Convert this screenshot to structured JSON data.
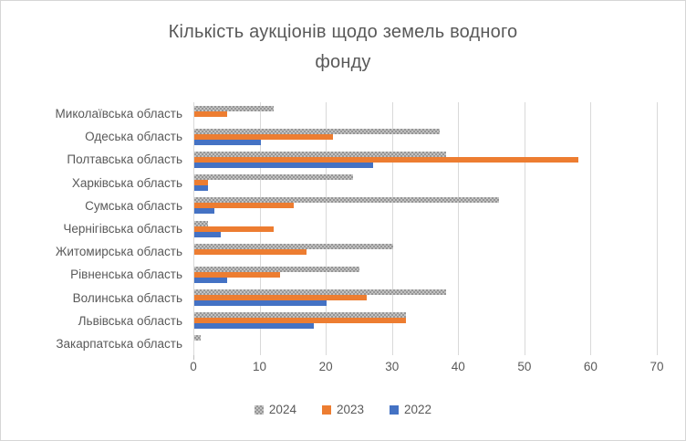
{
  "title": {
    "line1": "Кількість аукціонів щодо земель водного",
    "line2": "фонду"
  },
  "colors": {
    "series_2024": "#ABABAB",
    "series_2023": "#ED7D31",
    "series_2022": "#4472C4",
    "text": "#595959",
    "gridline": "#D9D9D9",
    "border": "#D6D6D6",
    "background": "#FFFFFF"
  },
  "chart_data": {
    "type": "bar",
    "orientation": "horizontal",
    "title": "Кількість аукціонів щодо земель водного фонду",
    "xlabel": "",
    "ylabel": "",
    "categories": [
      "Миколаївська область",
      "Одеська область",
      "Полтавська область",
      "Харківська область",
      "Сумська область",
      "Чернігівська область",
      "Житомирська область",
      "Рівненська область",
      "Волинська область",
      "Львівська область",
      "Закарпатська область"
    ],
    "series": [
      {
        "name": "2024",
        "color": "#ABABAB",
        "pattern": "dotted-gray",
        "values": [
          12,
          37,
          38,
          24,
          46,
          2,
          30,
          25,
          38,
          32,
          1
        ]
      },
      {
        "name": "2023",
        "color": "#ED7D31",
        "pattern": "solid",
        "values": [
          5,
          21,
          58,
          2,
          15,
          12,
          17,
          13,
          26,
          32,
          0
        ]
      },
      {
        "name": "2022",
        "color": "#4472C4",
        "pattern": "solid",
        "values": [
          0,
          10,
          27,
          2,
          3,
          4,
          0,
          5,
          20,
          18,
          0
        ]
      }
    ],
    "xlim": [
      0,
      70
    ],
    "xticks": [
      0,
      10,
      20,
      30,
      40,
      50,
      60,
      70
    ],
    "grid": "vertical",
    "legend_position": "bottom",
    "legend": [
      "2024",
      "2023",
      "2022"
    ]
  }
}
